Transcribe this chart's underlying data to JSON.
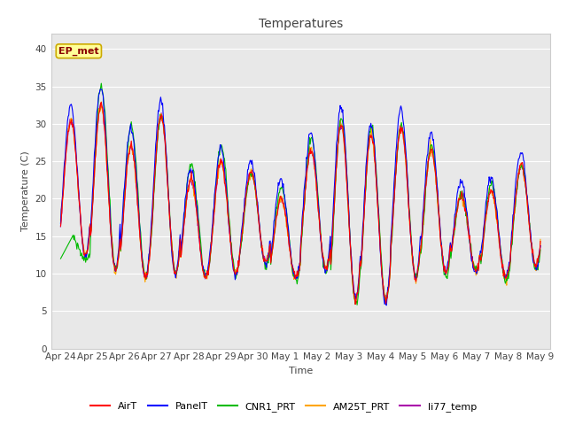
{
  "title": "Temperatures",
  "xlabel": "Time",
  "ylabel": "Temperature (C)",
  "annotation_text": "EP_met",
  "annotation_color": "#8B0000",
  "annotation_bg": "#FFFF99",
  "ylim": [
    0,
    42
  ],
  "yticks": [
    0,
    5,
    10,
    15,
    20,
    25,
    30,
    35,
    40
  ],
  "x_labels": [
    "Apr 24",
    "Apr 25",
    "Apr 26",
    "Apr 27",
    "Apr 28",
    "Apr 29",
    "Apr 30",
    "May 1",
    "May 2",
    "May 3",
    "May 4",
    "May 5",
    "May 6",
    "May 7",
    "May 8",
    "May 9"
  ],
  "line_colors": {
    "AirT": "#FF0000",
    "PanelT": "#0000FF",
    "CNR1_PRT": "#00BB00",
    "AM25T_PRT": "#FFA500",
    "li77_temp": "#AA00AA"
  },
  "figure_bg": "#FFFFFF",
  "axes_bg": "#E8E8E8",
  "grid_color": "#FFFFFF",
  "n_points_per_day": 48,
  "n_days": 16,
  "daily_max": [
    30.5,
    32.5,
    27.0,
    31.0,
    22.5,
    25.0,
    23.5,
    20.0,
    26.5,
    30.0,
    28.5,
    29.5,
    26.5,
    20.5,
    21.0,
    24.5
  ],
  "daily_min": [
    12.5,
    10.5,
    9.5,
    10.0,
    9.5,
    10.0,
    11.5,
    9.5,
    10.5,
    6.5,
    6.5,
    9.5,
    10.0,
    10.5,
    9.5,
    11.0
  ],
  "cnr1_max": [
    15.0,
    35.0,
    29.5,
    31.0,
    24.5,
    27.0,
    23.5,
    21.5,
    28.0,
    30.5,
    29.5,
    30.0,
    27.0,
    20.5,
    22.0,
    24.5
  ],
  "cnr1_min": [
    12.0,
    10.5,
    9.5,
    10.0,
    9.5,
    10.0,
    11.0,
    9.0,
    10.0,
    6.0,
    6.5,
    9.5,
    9.5,
    10.5,
    9.0,
    10.5
  ],
  "title_fontsize": 10,
  "label_fontsize": 8,
  "tick_fontsize": 7.5,
  "legend_fontsize": 8
}
